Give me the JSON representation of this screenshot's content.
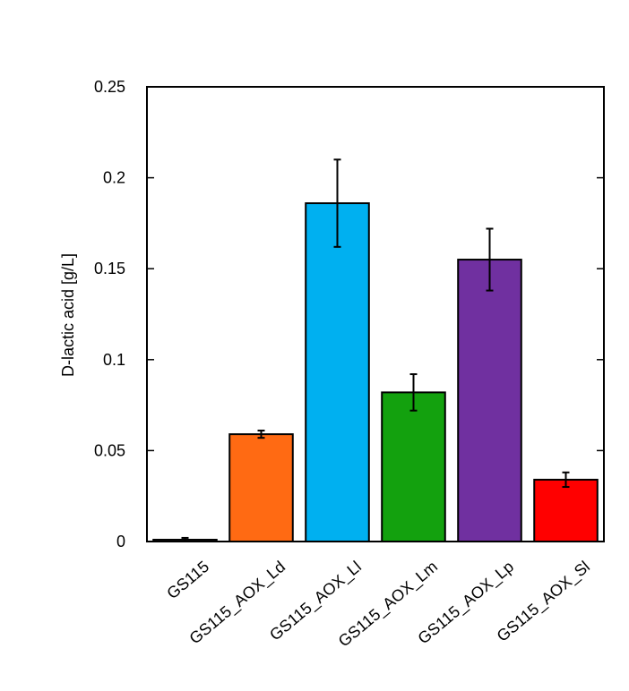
{
  "chart_data": {
    "type": "bar",
    "title": "",
    "xlabel": "",
    "ylabel": "D-lactic acid [g/L]",
    "ylim": [
      0,
      0.25
    ],
    "yticks": [
      0,
      0.05,
      0.1,
      0.15,
      0.2,
      0.25
    ],
    "ytick_labels": [
      "0",
      "0.05",
      "0.1",
      "0.15",
      "0.2",
      "0.25"
    ],
    "categories": [
      "GS115",
      "GS115_AOX_Ld",
      "GS115_AOX_Ll",
      "GS115_AOX_Lm",
      "GS115_AOX_Lp",
      "GS115_AOX_Sl"
    ],
    "values": [
      0.001,
      0.059,
      0.186,
      0.082,
      0.155,
      0.034
    ],
    "errors": [
      0.001,
      0.002,
      0.024,
      0.01,
      0.017,
      0.004
    ],
    "colors": [
      "#ffffff",
      "#ff6a13",
      "#00b0f0",
      "#13a10e",
      "#7030a0",
      "#ff0000"
    ],
    "grid": false,
    "legend": "none"
  }
}
